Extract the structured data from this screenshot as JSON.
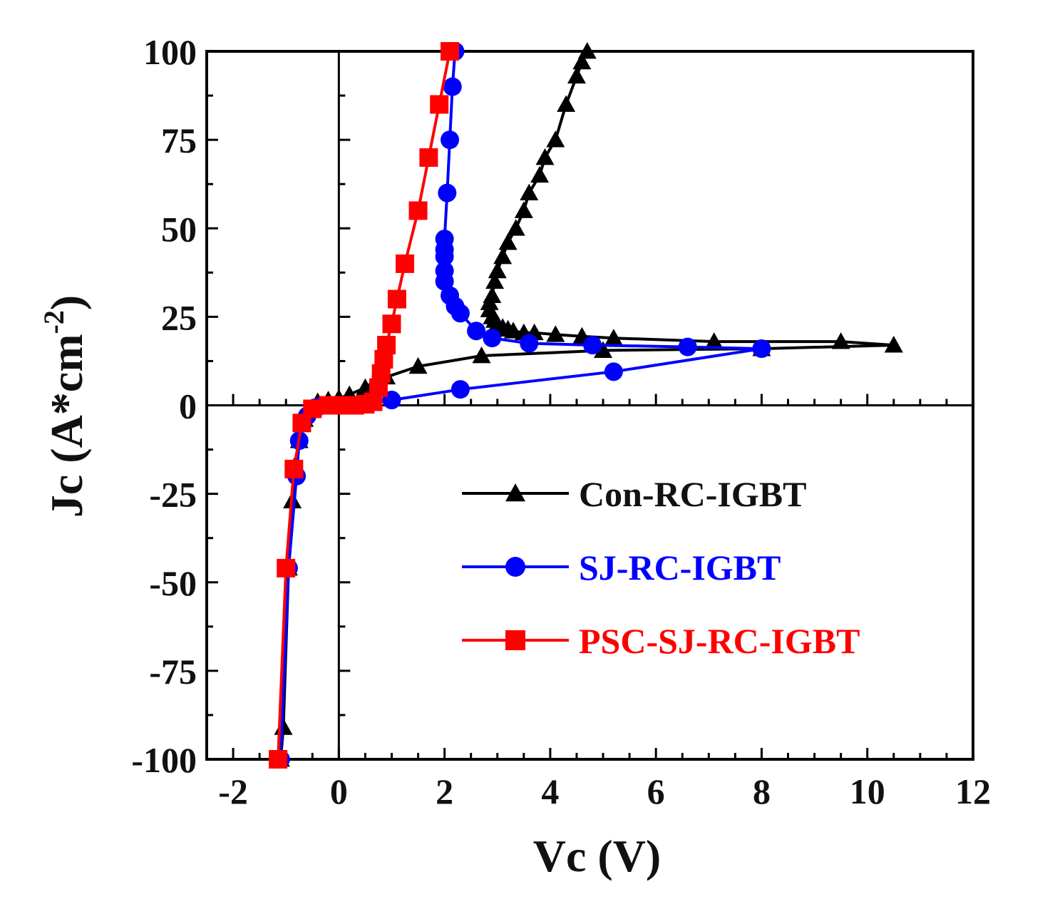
{
  "chart_data": {
    "type": "line",
    "title": "",
    "xlabel": "Vc (V)",
    "ylabel": "Jc (A*cm",
    "ylabel_superscript": "-2",
    "ylabel_close": ")",
    "xlim": [
      -2.5,
      12
    ],
    "ylim": [
      -100,
      100
    ],
    "x_ticks": [
      -2,
      0,
      2,
      4,
      6,
      8,
      10,
      12
    ],
    "x_tick_labels": [
      "-2",
      "0",
      "2",
      "4",
      "6",
      "8",
      "10",
      "12"
    ],
    "y_ticks": [
      -100,
      -75,
      -50,
      -25,
      0,
      25,
      50,
      75,
      100
    ],
    "y_tick_labels": [
      "-100",
      "-75",
      "-50",
      "-25",
      "0",
      "25",
      "50",
      "75",
      "100"
    ],
    "grid": false,
    "legend_position": "right-middle",
    "series": [
      {
        "name": "Con-RC-IGBT",
        "color": "#000000",
        "marker": "triangle",
        "points": [
          [
            -1.1,
            -100
          ],
          [
            -1.05,
            -91
          ],
          [
            -0.95,
            -46
          ],
          [
            -0.88,
            -27
          ],
          [
            -0.83,
            -17
          ],
          [
            -0.75,
            -10
          ],
          [
            -0.65,
            -4
          ],
          [
            -0.55,
            -1
          ],
          [
            -0.4,
            1
          ],
          [
            -0.2,
            1.5
          ],
          [
            0,
            2
          ],
          [
            0.2,
            3
          ],
          [
            0.5,
            5
          ],
          [
            0.7,
            7
          ],
          [
            0.9,
            8
          ],
          [
            1.5,
            11
          ],
          [
            2.7,
            14
          ],
          [
            5,
            15.5
          ],
          [
            8,
            16
          ],
          [
            10.5,
            17
          ],
          [
            10.5,
            17
          ],
          [
            9.5,
            18
          ],
          [
            7.1,
            18
          ],
          [
            5.2,
            19
          ],
          [
            4.6,
            19.5
          ],
          [
            4.1,
            20
          ],
          [
            3.7,
            20.5
          ],
          [
            3.5,
            20.5
          ],
          [
            3.3,
            21
          ],
          [
            3.2,
            21.5
          ],
          [
            3.1,
            22
          ],
          [
            3.0,
            23
          ],
          [
            2.95,
            24
          ],
          [
            2.9,
            25
          ],
          [
            2.85,
            27
          ],
          [
            2.85,
            29
          ],
          [
            2.9,
            31
          ],
          [
            2.95,
            35
          ],
          [
            3.0,
            38
          ],
          [
            3.1,
            42
          ],
          [
            3.2,
            46
          ],
          [
            3.35,
            50
          ],
          [
            3.5,
            55
          ],
          [
            3.6,
            60
          ],
          [
            3.8,
            65
          ],
          [
            3.9,
            70
          ],
          [
            4.1,
            75
          ],
          [
            4.3,
            85
          ],
          [
            4.5,
            93
          ],
          [
            4.6,
            97
          ],
          [
            4.7,
            100
          ]
        ]
      },
      {
        "name": "SJ-RC-IGBT",
        "color": "#0000ff",
        "marker": "circle",
        "points": [
          [
            -1.1,
            -100
          ],
          [
            -0.95,
            -46
          ],
          [
            -0.8,
            -20
          ],
          [
            -0.75,
            -10
          ],
          [
            -0.6,
            -3
          ],
          [
            -0.4,
            -0.5
          ],
          [
            0,
            0
          ],
          [
            0.5,
            0.5
          ],
          [
            1.0,
            1.5
          ],
          [
            2.3,
            4.5
          ],
          [
            5.2,
            9.5
          ],
          [
            8.0,
            16
          ],
          [
            6.6,
            16.5
          ],
          [
            4.8,
            17
          ],
          [
            3.6,
            17.5
          ],
          [
            2.9,
            19
          ],
          [
            2.6,
            21
          ],
          [
            2.3,
            26
          ],
          [
            2.2,
            28
          ],
          [
            2.1,
            31
          ],
          [
            2.0,
            35
          ],
          [
            2.0,
            38
          ],
          [
            2.0,
            42
          ],
          [
            2.0,
            44
          ],
          [
            2.0,
            47
          ],
          [
            2.05,
            60
          ],
          [
            2.1,
            75
          ],
          [
            2.15,
            90
          ],
          [
            2.2,
            100
          ]
        ]
      },
      {
        "name": "PSC-SJ-RC-IGBT",
        "color": "#ff0000",
        "marker": "square",
        "points": [
          [
            -1.15,
            -100
          ],
          [
            -1.0,
            -46
          ],
          [
            -0.85,
            -18
          ],
          [
            -0.7,
            -5
          ],
          [
            -0.5,
            -1
          ],
          [
            -0.2,
            0
          ],
          [
            0,
            0
          ],
          [
            0.3,
            0
          ],
          [
            0.5,
            0.3
          ],
          [
            0.65,
            1
          ],
          [
            0.75,
            5
          ],
          [
            0.8,
            9
          ],
          [
            0.85,
            13
          ],
          [
            0.9,
            17
          ],
          [
            1.0,
            23
          ],
          [
            1.1,
            30
          ],
          [
            1.25,
            40
          ],
          [
            1.5,
            55
          ],
          [
            1.7,
            70
          ],
          [
            1.9,
            85
          ],
          [
            2.1,
            100
          ]
        ]
      }
    ]
  }
}
